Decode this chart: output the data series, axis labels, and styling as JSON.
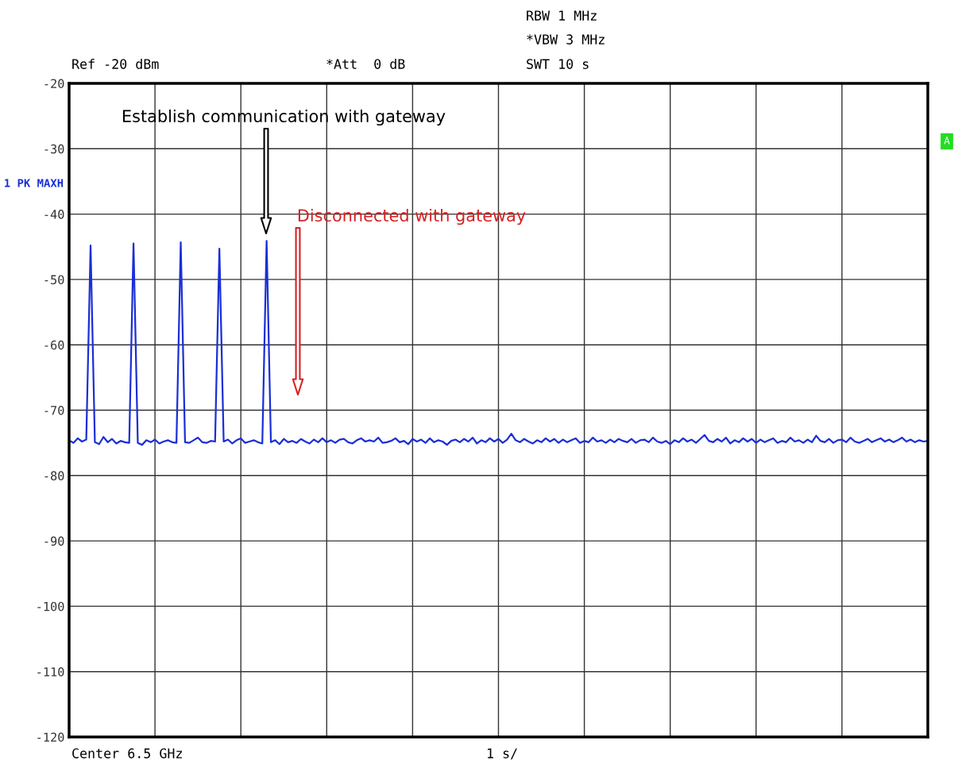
{
  "chart_data": {
    "type": "line",
    "categories": [
      null,
      null,
      null,
      null,
      null,
      null,
      null,
      null,
      null,
      null,
      null,
      null,
      null,
      null,
      null,
      null,
      null,
      null,
      null,
      null,
      null,
      null,
      null,
      null,
      null,
      null,
      null,
      null,
      null,
      null,
      null,
      null,
      null,
      null,
      null,
      null,
      null,
      null,
      null,
      null,
      null,
      null,
      null,
      null,
      null,
      null,
      null,
      null,
      null,
      null,
      null,
      null,
      null,
      null,
      null,
      null,
      null,
      null,
      null,
      null,
      null,
      null,
      null,
      null,
      null,
      null,
      null,
      null,
      null,
      null,
      null,
      null,
      null,
      null,
      null,
      null,
      null,
      null,
      null,
      null,
      null,
      null,
      null,
      null,
      null,
      null,
      null,
      null,
      null,
      null,
      null,
      null,
      null,
      null,
      null,
      null,
      null,
      null,
      null,
      null,
      null,
      null,
      null,
      null,
      null,
      null,
      null,
      null,
      null,
      null,
      null,
      null,
      null,
      null,
      null,
      null,
      null,
      null,
      null,
      null,
      null,
      null,
      null,
      null,
      null,
      null,
      null,
      null,
      null,
      null,
      null,
      null,
      null,
      null,
      null,
      null,
      null,
      null,
      null,
      null,
      null,
      null,
      null,
      null,
      null,
      null,
      null,
      null,
      null,
      null,
      null,
      null,
      null,
      null,
      null,
      null,
      null,
      null,
      null,
      null,
      null,
      null,
      null,
      null,
      null,
      null,
      null,
      null,
      null,
      null,
      null,
      null,
      null,
      null,
      null,
      null,
      null,
      null,
      null,
      null,
      null,
      null,
      null,
      null,
      null,
      null,
      null,
      null,
      null,
      null,
      null,
      null,
      null,
      null,
      null,
      null,
      null,
      null,
      null,
      null,
      null
    ],
    "series": [
      {
        "name": "1 PK MAXH",
        "color": "#1a2fd6",
        "values": [
          -74.6,
          -75.0,
          -74.3,
          -74.8,
          -74.5,
          -44.8,
          -74.9,
          -75.2,
          -74.1,
          -74.9,
          -74.4,
          -75.1,
          -74.7,
          -74.9,
          -75.0,
          -44.5,
          -75.0,
          -75.3,
          -74.6,
          -74.9,
          -74.5,
          -75.1,
          -74.8,
          -74.6,
          -74.9,
          -75.0,
          -44.3,
          -74.9,
          -75.0,
          -74.6,
          -74.2,
          -74.9,
          -75.0,
          -74.7,
          -74.8,
          -45.3,
          -74.8,
          -74.5,
          -75.1,
          -74.6,
          -74.3,
          -75.0,
          -74.8,
          -74.6,
          -74.9,
          -75.1,
          -44.1,
          -74.9,
          -74.6,
          -75.2,
          -74.4,
          -74.9,
          -74.7,
          -75.0,
          -74.4,
          -74.8,
          -75.1,
          -74.5,
          -74.9,
          -74.3,
          -74.9,
          -74.6,
          -75.0,
          -74.5,
          -74.4,
          -74.9,
          -75.1,
          -74.6,
          -74.3,
          -74.8,
          -74.6,
          -74.8,
          -74.2,
          -75.0,
          -74.9,
          -74.7,
          -74.3,
          -74.9,
          -74.7,
          -75.2,
          -74.4,
          -74.8,
          -74.5,
          -75.0,
          -74.3,
          -74.9,
          -74.6,
          -74.8,
          -75.3,
          -74.7,
          -74.5,
          -74.9,
          -74.4,
          -74.8,
          -74.2,
          -75.1,
          -74.6,
          -74.9,
          -74.3,
          -74.8,
          -74.4,
          -75.0,
          -74.5,
          -73.6,
          -74.6,
          -74.9,
          -74.4,
          -74.8,
          -75.1,
          -74.6,
          -74.9,
          -74.3,
          -74.8,
          -74.4,
          -75.0,
          -74.5,
          -74.9,
          -74.6,
          -74.3,
          -75.0,
          -74.7,
          -74.9,
          -74.2,
          -74.8,
          -74.6,
          -75.0,
          -74.5,
          -74.9,
          -74.4,
          -74.7,
          -74.9,
          -74.4,
          -75.0,
          -74.6,
          -74.5,
          -74.9,
          -74.2,
          -74.8,
          -75.0,
          -74.7,
          -75.2,
          -74.6,
          -74.9,
          -74.3,
          -74.8,
          -74.5,
          -75.0,
          -74.4,
          -73.8,
          -74.7,
          -74.9,
          -74.4,
          -74.8,
          -74.2,
          -75.1,
          -74.6,
          -74.9,
          -74.3,
          -74.8,
          -74.4,
          -75.0,
          -74.5,
          -74.9,
          -74.6,
          -74.3,
          -75.0,
          -74.7,
          -74.9,
          -74.2,
          -74.8,
          -74.6,
          -75.0,
          -74.5,
          -74.9,
          -73.9,
          -74.7,
          -74.9,
          -74.4,
          -75.0,
          -74.6,
          -74.5,
          -74.9,
          -74.2,
          -74.8,
          -75.0,
          -74.7,
          -74.4,
          -74.9,
          -74.6,
          -74.3,
          -74.8,
          -74.5,
          -74.9,
          -74.6,
          -74.2,
          -74.8,
          -74.5,
          -74.9,
          -74.6,
          -74.8,
          -74.7
        ]
      }
    ],
    "ylim": [
      -120,
      -20
    ],
    "yticks": [
      -20,
      -30,
      -40,
      -50,
      -60,
      -70,
      -80,
      -90,
      -100,
      -110,
      -120
    ],
    "grid": true,
    "legend": false,
    "marker": "none",
    "line_style": "solid",
    "annotations": [
      "Ref -20 dBm",
      "*Att  0 dB",
      "RBW 1 MHz",
      "*VBW 3 MHz",
      "SWT 10 s",
      "A",
      "Center 6.5 GHz",
      "1 s/",
      "Establish communication with gateway",
      "Disconnected with gateway"
    ]
  }
}
